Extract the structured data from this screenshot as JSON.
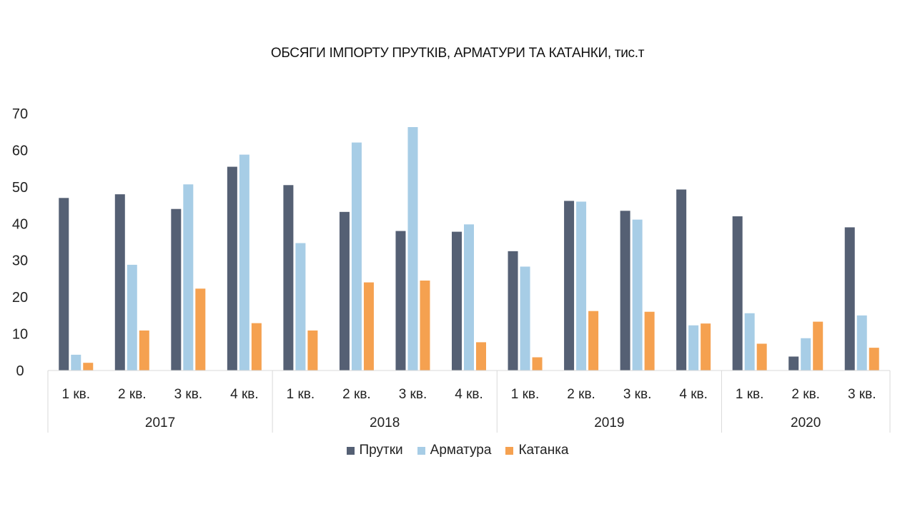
{
  "chart_data": {
    "type": "bar",
    "title": "ОБСЯГИ ІМПОРТУ ПРУТКІВ, АРМАТУРИ ТА КАТАНКИ, тис.т",
    "xlabel": "",
    "ylabel": "",
    "ylim": [
      0,
      70
    ],
    "yticks": [
      "0",
      "10",
      "20",
      "30",
      "40",
      "50",
      "60",
      "70"
    ],
    "grid": false,
    "legend_position": "bottom",
    "groups": [
      {
        "label": "2017",
        "count": 4
      },
      {
        "label": "2018",
        "count": 4
      },
      {
        "label": "2019",
        "count": 4
      },
      {
        "label": "2020",
        "count": 3
      }
    ],
    "categories": [
      "1 кв.",
      "2 кв.",
      "3 кв.",
      "4 кв.",
      "1 кв.",
      "2 кв.",
      "3 кв.",
      "4 кв.",
      "1 кв.",
      "2 кв.",
      "3 кв.",
      "4 кв.",
      "1 кв.",
      "2 кв.",
      "3 кв."
    ],
    "series": [
      {
        "name": "Прутки",
        "color": "#556074",
        "values": [
          47,
          48,
          44,
          55.5,
          50.5,
          43.2,
          38,
          37.8,
          32.5,
          46.2,
          43.5,
          49.3,
          42,
          3.8,
          39
        ]
      },
      {
        "name": "Арматура",
        "color": "#a7cde6",
        "values": [
          4.3,
          28.8,
          50.7,
          58.8,
          34.7,
          62.1,
          66.3,
          39.8,
          28.3,
          46,
          41.1,
          12.3,
          15.6,
          8.8,
          15
        ]
      },
      {
        "name": "Катанка",
        "color": "#f5a150",
        "values": [
          2.1,
          10.9,
          22.3,
          12.9,
          10.9,
          24,
          24.5,
          7.7,
          3.6,
          16.2,
          16,
          12.8,
          7.3,
          13.3,
          6.2
        ]
      }
    ]
  }
}
